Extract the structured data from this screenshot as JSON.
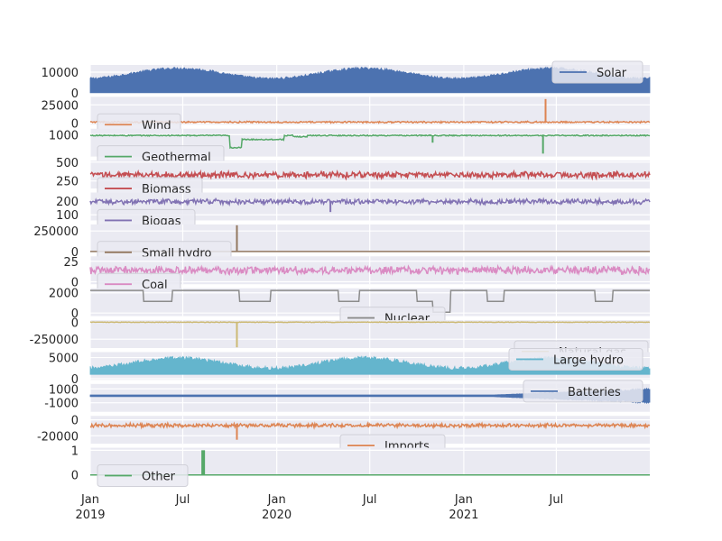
{
  "chart_data": {
    "type": "line",
    "subplots": "stacked",
    "grid": true,
    "x_range": [
      "2019-01-01",
      "2021-12-31"
    ],
    "x_ticks": [
      {
        "date": "2019-01-01",
        "label": "Jan",
        "sublabel": "2019"
      },
      {
        "date": "2019-07-01",
        "label": "Jul",
        "sublabel": ""
      },
      {
        "date": "2020-01-01",
        "label": "Jan",
        "sublabel": "2020"
      },
      {
        "date": "2020-07-01",
        "label": "Jul",
        "sublabel": ""
      },
      {
        "date": "2021-01-01",
        "label": "Jan",
        "sublabel": "2021"
      },
      {
        "date": "2021-07-01",
        "label": "Jul",
        "sublabel": ""
      }
    ],
    "series": [
      {
        "name": "Solar",
        "color": "#4c72b0",
        "ylim": [
          0,
          13500
        ],
        "yticks": [
          0,
          10000
        ],
        "legend": "right",
        "pattern": "seasonal_fill",
        "base": 0,
        "level": 9000,
        "amp": 2500,
        "noise": 1200,
        "spikes": []
      },
      {
        "name": "Wind",
        "color": "#dd8452",
        "ylim": [
          -2000,
          36000
        ],
        "yticks": [
          0,
          25000
        ],
        "legend": "left",
        "pattern": "band",
        "level": 1500,
        "noise": 900,
        "spikes": [
          {
            "date": "2021-06-10",
            "value": 33000
          }
        ]
      },
      {
        "name": "Geothermal",
        "color": "#55a868",
        "ylim": [
          -100,
          1300
        ],
        "yticks": [
          1000
        ],
        "legend": "left",
        "pattern": "steps",
        "level": 960,
        "noise": 25,
        "dips": [
          {
            "start": "2019-10-01",
            "end": "2019-10-25",
            "value": 350
          },
          {
            "start": "2019-10-25",
            "end": "2020-01-15",
            "value": 760
          },
          {
            "start": "2020-02-01",
            "end": "2020-03-01",
            "value": 900
          }
        ],
        "spikes": [
          {
            "date": "2021-06-05",
            "value": 50
          },
          {
            "date": "2020-11-01",
            "value": 600
          }
        ]
      },
      {
        "name": "Biomass",
        "color": "#c44e52",
        "ylim": [
          150,
          520
        ],
        "yticks": [
          250,
          500
        ],
        "legend": "left",
        "pattern": "band",
        "level": 330,
        "noise": 35,
        "spikes": []
      },
      {
        "name": "Biogas",
        "color": "#8172b3",
        "ylim": [
          60,
          260
        ],
        "yticks": [
          100,
          200
        ],
        "legend": "left",
        "pattern": "band",
        "level": 195,
        "noise": 15,
        "spikes": [
          {
            "date": "2020-04-15",
            "value": 120
          }
        ]
      },
      {
        "name": "Small hydro",
        "color": "#937860",
        "ylim": [
          -10000,
          330000
        ],
        "yticks": [
          0,
          250000
        ],
        "legend": "left",
        "pattern": "flat",
        "level": 300,
        "noise": 100,
        "spikes": [
          {
            "date": "2019-10-15",
            "value": 320000
          }
        ]
      },
      {
        "name": "Coal",
        "color": "#da8bc3",
        "ylim": [
          -3,
          31
        ],
        "yticks": [
          0,
          25
        ],
        "legend": "left",
        "pattern": "band",
        "level": 14,
        "noise": 4,
        "spikes": []
      },
      {
        "name": "Nuclear",
        "color": "#8c8c8c",
        "ylim": [
          -300,
          2450
        ],
        "yticks": [
          0,
          2000
        ],
        "legend": "center",
        "pattern": "outages",
        "level": 2240,
        "outages": [
          {
            "start": "2019-04-15",
            "end": "2019-06-10",
            "value": 1150
          },
          {
            "start": "2019-10-20",
            "end": "2019-12-20",
            "value": 1150
          },
          {
            "start": "2020-05-01",
            "end": "2020-06-10",
            "value": 1150
          },
          {
            "start": "2020-10-01",
            "end": "2020-11-01",
            "value": 1150
          },
          {
            "start": "2020-11-01",
            "end": "2020-12-05",
            "value": 80
          },
          {
            "start": "2021-02-15",
            "end": "2021-03-20",
            "value": 1150
          },
          {
            "start": "2021-09-15",
            "end": "2021-10-20",
            "value": 1150
          }
        ],
        "spikes": []
      },
      {
        "name": "Natural gas",
        "color": "#ccb974",
        "ylim": [
          -380000,
          30000
        ],
        "yticks": [
          -250000,
          0
        ],
        "legend": "right-bottom",
        "pattern": "band",
        "level": 0,
        "noise": 3500,
        "spikes": [
          {
            "date": "2019-10-15",
            "value": -370000
          }
        ]
      },
      {
        "name": "Large hydro",
        "color": "#64b5cd",
        "ylim": [
          -300,
          6300
        ],
        "yticks": [
          0,
          5000
        ],
        "legend": "right",
        "pattern": "seasonal_fill",
        "base": 1000,
        "level": 3400,
        "amp": 1200,
        "noise": 900,
        "spikes": []
      },
      {
        "name": "Batteries",
        "color": "#4c72b0",
        "ylim": [
          -2300,
          1700
        ],
        "yticks": [
          -1000,
          1000
        ],
        "legend": "right",
        "pattern": "growing_band",
        "level": 0,
        "noise": 120,
        "growth": 1000,
        "spikes": []
      },
      {
        "name": "Imports",
        "color": "#dd8452",
        "ylim": [
          -30000,
          5000
        ],
        "yticks": [
          -20000,
          0
        ],
        "legend": "center",
        "pattern": "band",
        "level": -7000,
        "noise": 2000,
        "spikes": [
          {
            "date": "2019-10-15",
            "value": -25000
          }
        ]
      },
      {
        "name": "Other",
        "color": "#55a868",
        "ylim": [
          -0.03,
          1.1
        ],
        "yticks": [
          0,
          1
        ],
        "legend": "left",
        "pattern": "flat",
        "level": 0,
        "noise": 0,
        "spikes": [
          {
            "date": "2019-08-10",
            "value": 1
          }
        ]
      }
    ]
  }
}
